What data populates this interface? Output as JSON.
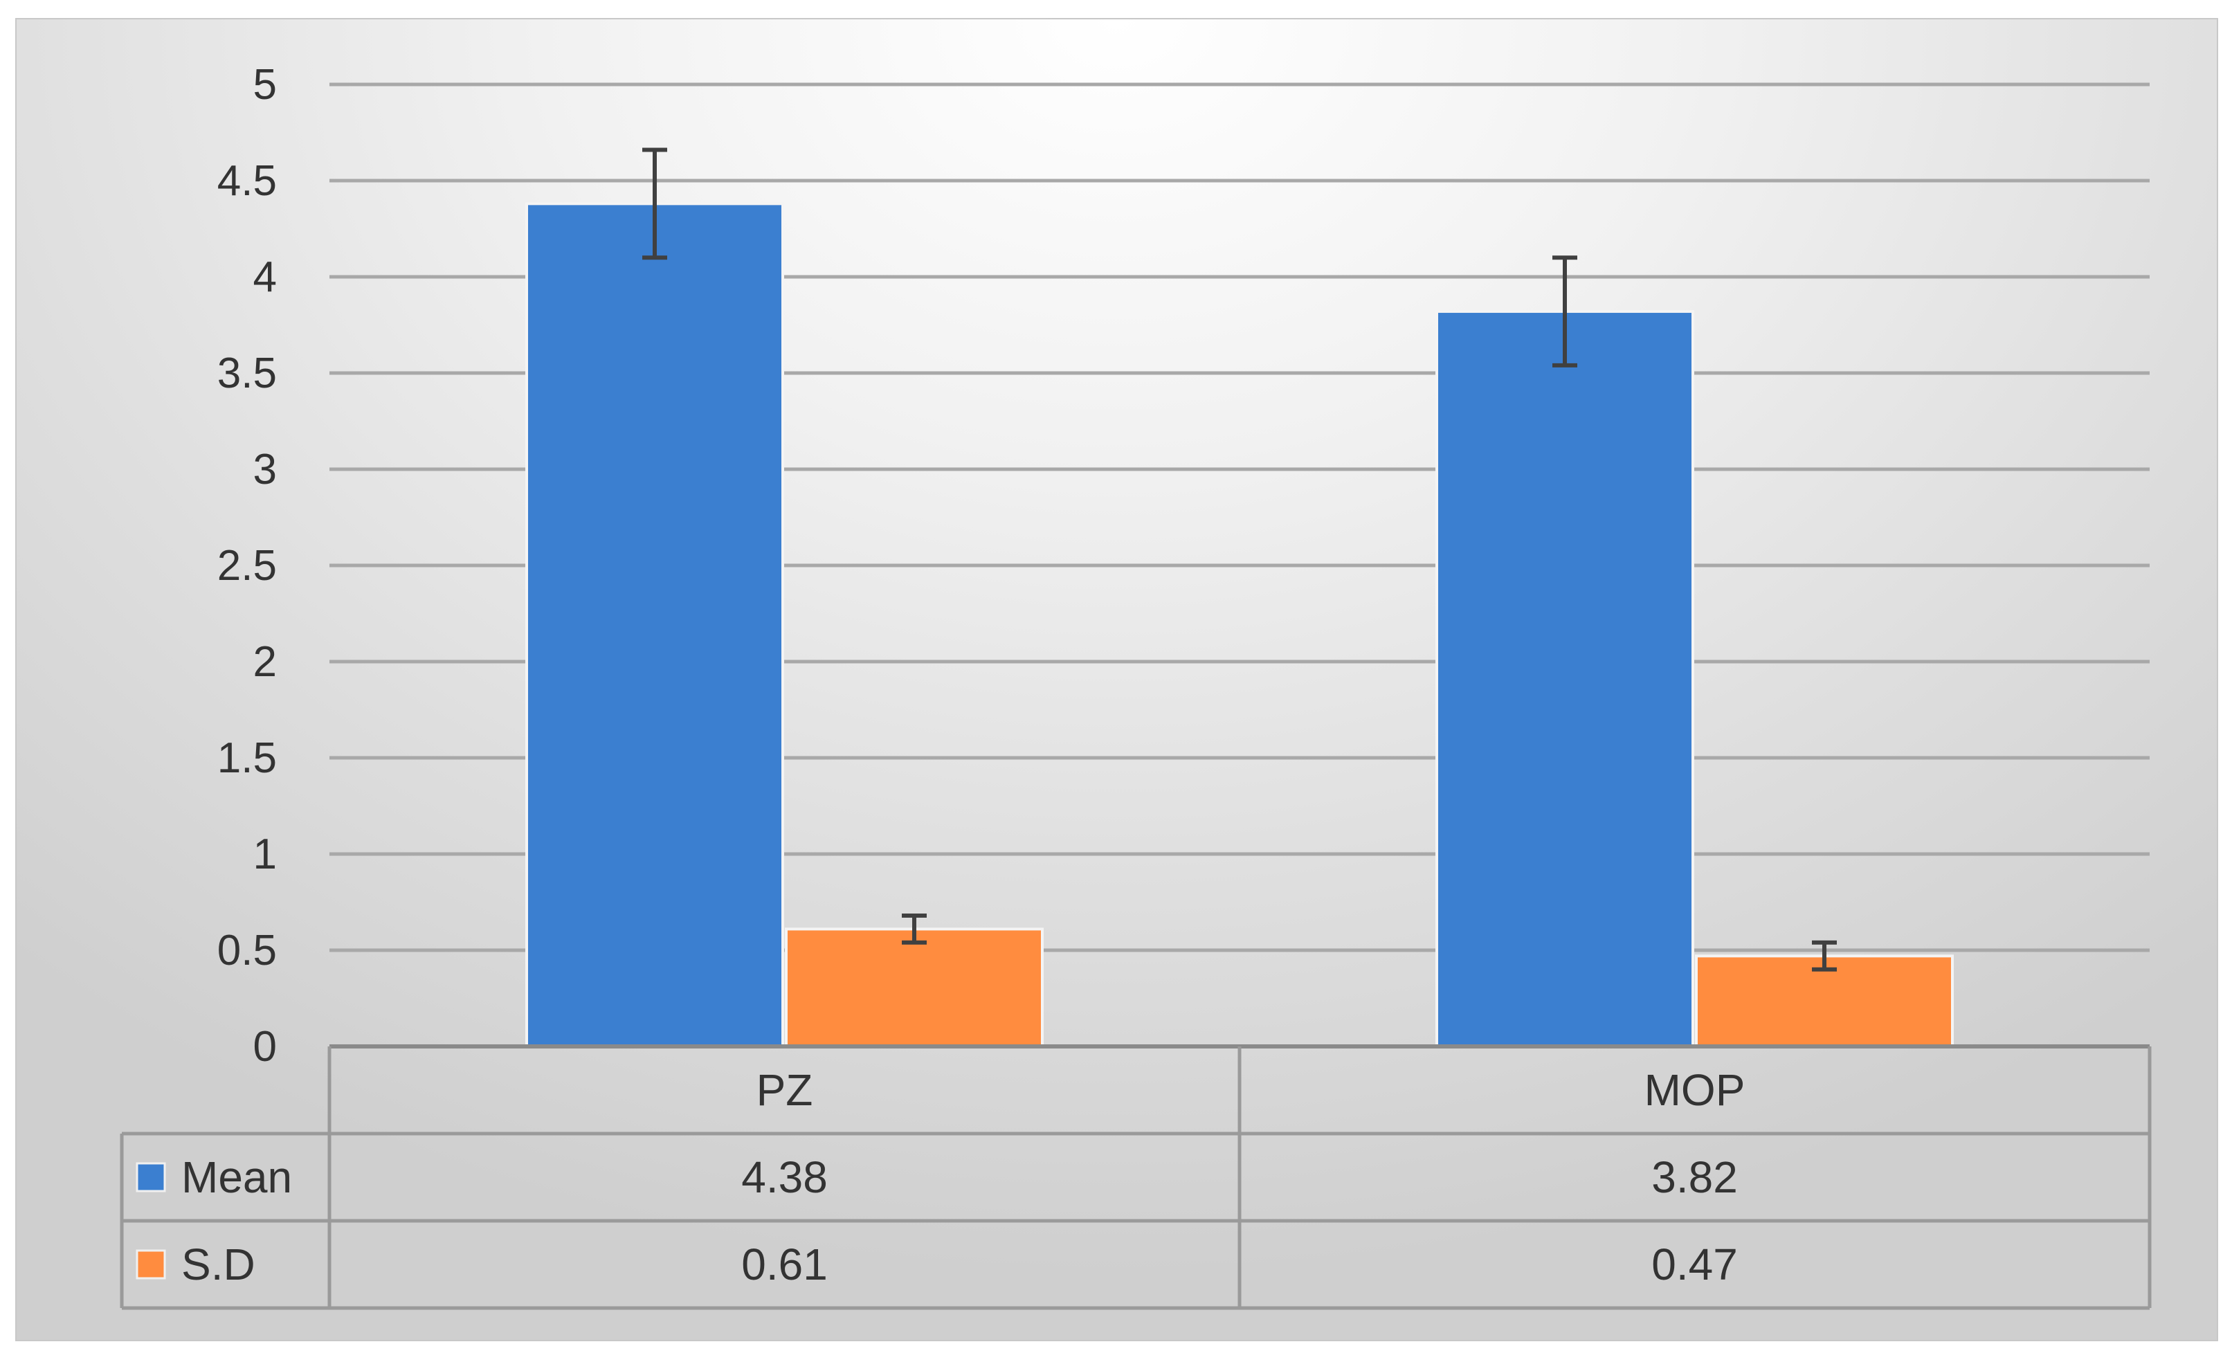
{
  "chart_data": {
    "type": "bar",
    "title": "",
    "xlabel": "",
    "ylabel": "",
    "categories": [
      "PZ",
      "MOP"
    ],
    "series": [
      {
        "name": "Mean",
        "values": [
          4.38,
          3.82
        ],
        "error": [
          0.28,
          0.28
        ],
        "color": "#3b7fd0",
        "value_labels": [
          "4.38",
          "3.82"
        ]
      },
      {
        "name": "S.D",
        "values": [
          0.61,
          0.47
        ],
        "error": [
          0.07,
          0.07
        ],
        "color": "#ff8c3f",
        "value_labels": [
          "0.61",
          "0.47"
        ]
      }
    ],
    "ylim": [
      0,
      5
    ],
    "yticks": [
      0,
      0.5,
      1,
      1.5,
      2,
      2.5,
      3,
      3.5,
      4,
      4.5,
      5
    ],
    "ytick_labels": [
      "0",
      "0.5",
      "1",
      "1.5",
      "2",
      "2.5",
      "3",
      "3.5",
      "4",
      "4.5",
      "5"
    ],
    "grid": true,
    "legend": "data-table-below",
    "data_table": true
  }
}
